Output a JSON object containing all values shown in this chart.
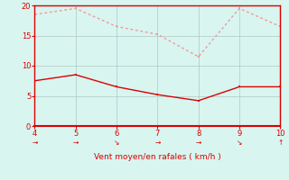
{
  "x": [
    4,
    5,
    6,
    7,
    8,
    9,
    10
  ],
  "y_mean": [
    7.5,
    8.5,
    6.5,
    5.2,
    4.2,
    6.5,
    6.5
  ],
  "y_gust": [
    18.5,
    19.5,
    16.5,
    15.2,
    11.5,
    19.5,
    16.5
  ],
  "mean_color": "#dd0000",
  "gust_color": "#ee9999",
  "background_color": "#d8f5f0",
  "grid_color": "#b0c8c4",
  "xlabel": "Vent moyen/en rafales ( km/h )",
  "xlabel_color": "#dd0000",
  "tick_color": "#dd0000",
  "spine_color": "#dd0000",
  "ylim": [
    0,
    20
  ],
  "xlim": [
    4,
    10
  ],
  "yticks": [
    0,
    5,
    10,
    15,
    20
  ],
  "xticks": [
    4,
    5,
    6,
    7,
    8,
    9,
    10
  ],
  "arrow_markers": [
    "→",
    "→",
    "↘",
    "→",
    "→",
    "↘",
    "↑"
  ]
}
